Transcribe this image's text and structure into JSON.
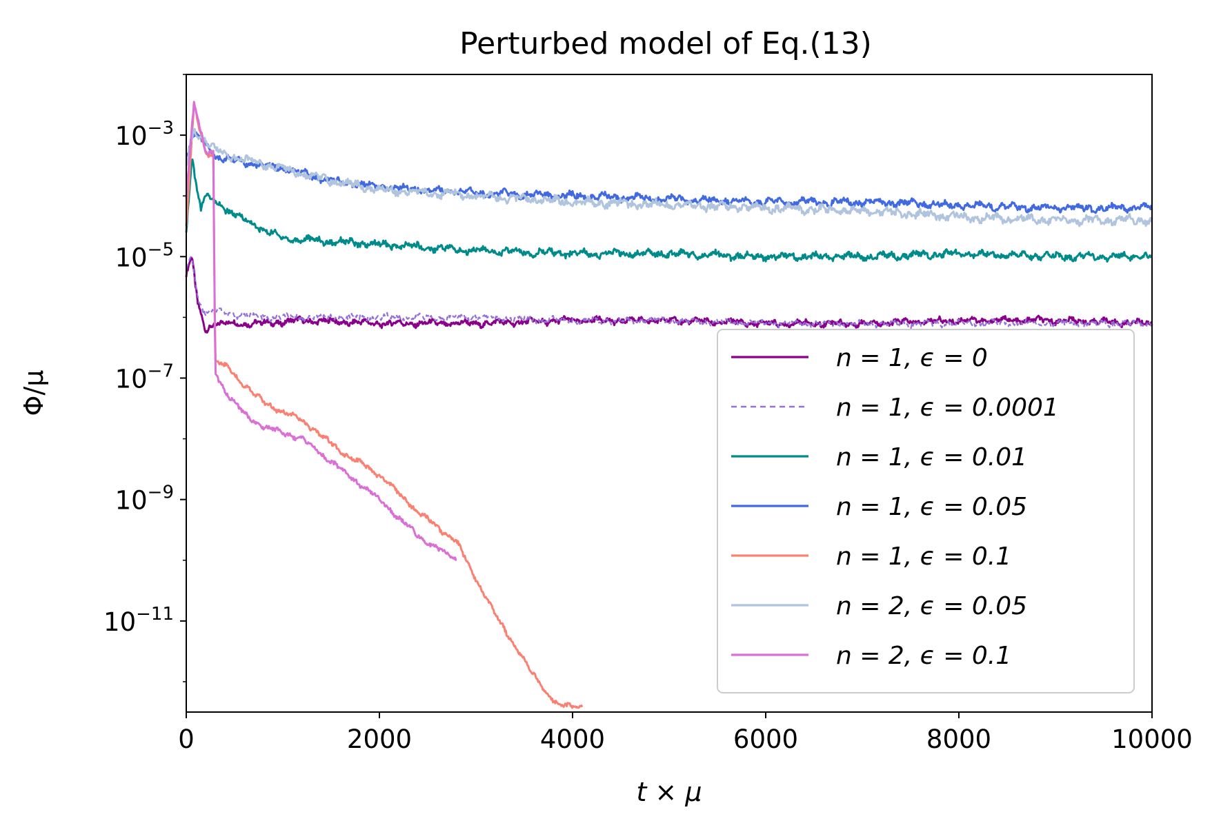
{
  "chart_data": {
    "type": "line",
    "title": "Perturbed model of Eq.(13)",
    "xlabel": "t × μ",
    "ylabel": "Φ/μ",
    "xlim": [
      0,
      10000
    ],
    "ylim_log10": [
      -12.5,
      -2
    ],
    "yscale": "log",
    "legend_position": "lower right",
    "x_ticks": [
      {
        "value": 0,
        "label": "0"
      },
      {
        "value": 2000,
        "label": "2000"
      },
      {
        "value": 4000,
        "label": "4000"
      },
      {
        "value": 6000,
        "label": "6000"
      },
      {
        "value": 8000,
        "label": "8000"
      },
      {
        "value": 10000,
        "label": "10000"
      }
    ],
    "y_ticks": [
      {
        "exp": -3,
        "base": "10",
        "sup": "−3"
      },
      {
        "exp": -5,
        "base": "10",
        "sup": "−5"
      },
      {
        "exp": -7,
        "base": "10",
        "sup": "−7"
      },
      {
        "exp": -9,
        "base": "10",
        "sup": "−9"
      },
      {
        "exp": -11,
        "base": "10",
        "sup": "−11"
      }
    ],
    "series": [
      {
        "name": "n = 1, ϵ = 0",
        "color": "#8B008B",
        "dash": "solid",
        "x": [
          0,
          60,
          120,
          200,
          300,
          500,
          800,
          1200,
          2000,
          3000,
          4000,
          5000,
          6000,
          7000,
          8000,
          9000,
          10000
        ],
        "log10_y": [
          -5.3,
          -5.0,
          -5.8,
          -6.2,
          -6.1,
          -6.1,
          -6.1,
          -6.05,
          -6.1,
          -6.1,
          -6.05,
          -6.05,
          -6.1,
          -6.1,
          -6.05,
          -6.05,
          -6.1
        ],
        "noise": 0.06
      },
      {
        "name": "n = 1, ϵ = 0.0001",
        "color": "#9370DB",
        "dash": "dashed",
        "x": [
          0,
          60,
          120,
          200,
          300,
          500,
          800,
          1200,
          2000,
          3000,
          4000,
          5000,
          6000,
          7000,
          8000,
          9000,
          10000
        ],
        "log10_y": [
          -5.2,
          -5.0,
          -5.7,
          -5.9,
          -5.9,
          -5.95,
          -6.0,
          -6.0,
          -6.0,
          -6.0,
          -6.05,
          -6.05,
          -6.1,
          -6.1,
          -6.1,
          -6.1,
          -6.1
        ],
        "noise": 0.06
      },
      {
        "name": "n = 1, ϵ = 0.01",
        "color": "#008B8B",
        "dash": "solid",
        "x": [
          0,
          60,
          100,
          150,
          200,
          300,
          600,
          1000,
          2000,
          3000,
          4000,
          5000,
          6000,
          7000,
          8000,
          9000,
          10000
        ],
        "log10_y": [
          -4.6,
          -3.3,
          -3.8,
          -4.2,
          -4.0,
          -4.1,
          -4.4,
          -4.7,
          -4.8,
          -4.9,
          -4.95,
          -4.95,
          -5.0,
          -5.0,
          -4.95,
          -5.0,
          -5.0
        ],
        "noise": 0.07
      },
      {
        "name": "n = 1, ϵ = 0.05",
        "color": "#4169E1",
        "dash": "solid",
        "x": [
          0,
          60,
          150,
          300,
          600,
          1000,
          1500,
          2000,
          3000,
          4000,
          5000,
          6000,
          7000,
          8000,
          9000,
          10000
        ],
        "log10_y": [
          -3.4,
          -3.0,
          -3.05,
          -3.35,
          -3.45,
          -3.55,
          -3.75,
          -3.85,
          -3.95,
          -4.0,
          -4.05,
          -4.1,
          -4.1,
          -4.15,
          -4.2,
          -4.2
        ],
        "noise": 0.07
      },
      {
        "name": "n = 1, ϵ = 0.1",
        "color": "#FA8072",
        "dash": "solid",
        "x": [
          0,
          80,
          200,
          280,
          300,
          400,
          800,
          1200,
          1600,
          2000,
          2400,
          2800,
          3200,
          3600,
          3850,
          4100
        ],
        "log10_y": [
          -4.5,
          -2.5,
          -3.3,
          -3.3,
          -6.7,
          -6.8,
          -7.4,
          -7.7,
          -8.2,
          -8.6,
          -9.2,
          -9.7,
          -10.9,
          -11.9,
          -12.4,
          -12.4
        ],
        "noise": 0.05
      },
      {
        "name": "n = 2, ϵ = 0.05",
        "color": "#B0C4DE",
        "dash": "solid",
        "x": [
          0,
          80,
          150,
          300,
          600,
          1000,
          1500,
          2000,
          3000,
          4000,
          5000,
          6000,
          7000,
          8000,
          9000,
          10000
        ],
        "log10_y": [
          -3.5,
          -2.9,
          -3.0,
          -3.25,
          -3.4,
          -3.55,
          -3.75,
          -3.9,
          -4.0,
          -4.1,
          -4.15,
          -4.2,
          -4.25,
          -4.35,
          -4.4,
          -4.4
        ],
        "noise": 0.08
      },
      {
        "name": "n = 2, ϵ = 0.1",
        "color": "#DA70D6",
        "dash": "solid",
        "x": [
          0,
          80,
          200,
          280,
          300,
          400,
          600,
          800,
          1200,
          1600,
          2000,
          2400,
          2800
        ],
        "log10_y": [
          -4.0,
          -2.45,
          -3.3,
          -3.3,
          -6.9,
          -7.2,
          -7.6,
          -7.8,
          -8.0,
          -8.5,
          -9.0,
          -9.6,
          -10.0
        ],
        "noise": 0.05
      }
    ]
  }
}
